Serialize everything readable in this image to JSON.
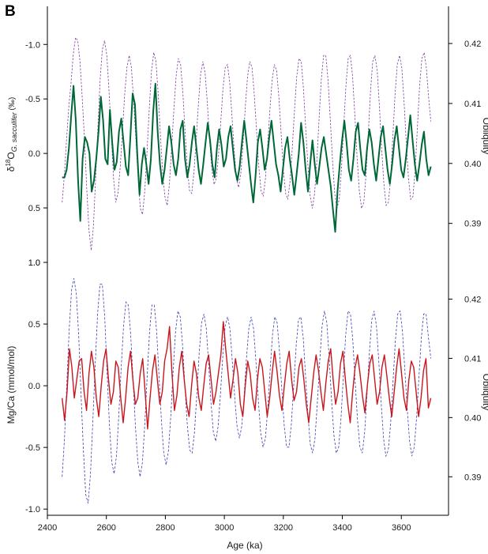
{
  "panel_label": "B",
  "chart_data": [
    {
      "type": "line",
      "name": "d18O panel",
      "ylabel_parts": {
        "prefix": "δ",
        "sup": "18",
        "mid": "O",
        "sub": "G. sacculifer",
        "unit": " (‰)"
      },
      "y2label": "Obliquity",
      "x_range": [
        2400,
        3760
      ],
      "ylim": [
        1.0,
        -1.35
      ],
      "y_inverted": true,
      "yticks": [
        -1.0,
        -0.5,
        0.0,
        0.5,
        1.0
      ],
      "ytick_labels": [
        "-1.0",
        "-0.5",
        "0.0",
        "0.5",
        "1.0"
      ],
      "y2lim": [
        0.3835,
        0.4262
      ],
      "y2ticks": [
        0.39,
        0.4,
        0.41,
        0.42
      ],
      "y2tick_labels": [
        "0.39",
        "0.40",
        "0.41",
        "0.42"
      ],
      "series": [
        {
          "role": "proxy",
          "color": "#006837",
          "x_start": 2450,
          "x_end": 3700,
          "values": [
            0.22,
            0.22,
            0.15,
            -0.05,
            -0.35,
            -0.62,
            -0.3,
            0.25,
            0.62,
            0.05,
            -0.15,
            -0.1,
            0.0,
            0.35,
            0.25,
            0.05,
            -0.2,
            -0.52,
            -0.3,
            0.05,
            0.1,
            -0.4,
            -0.1,
            0.15,
            0.08,
            -0.2,
            -0.32,
            -0.1,
            0.12,
            0.2,
            -0.15,
            -0.55,
            -0.45,
            0.0,
            0.38,
            0.1,
            -0.05,
            0.1,
            0.28,
            0.05,
            -0.38,
            -0.64,
            -0.2,
            0.1,
            0.28,
            0.15,
            -0.05,
            -0.25,
            -0.1,
            0.1,
            0.2,
            0.05,
            -0.22,
            -0.3,
            0.05,
            0.22,
            0.1,
            -0.1,
            -0.25,
            -0.05,
            0.15,
            0.28,
            0.1,
            -0.1,
            -0.28,
            -0.12,
            0.1,
            0.22,
            -0.05,
            -0.22,
            -0.08,
            0.12,
            0.05,
            -0.15,
            -0.25,
            -0.05,
            0.15,
            0.25,
            0.12,
            -0.1,
            -0.3,
            -0.12,
            0.08,
            0.28,
            0.45,
            0.2,
            -0.1,
            -0.22,
            -0.05,
            0.15,
            0.05,
            -0.15,
            -0.3,
            -0.1,
            0.1,
            0.2,
            0.35,
            0.15,
            -0.05,
            -0.15,
            0.05,
            0.2,
            0.38,
            0.2,
            0.0,
            -0.28,
            -0.1,
            0.15,
            0.35,
            0.1,
            -0.12,
            0.1,
            0.28,
            0.12,
            -0.05,
            -0.15,
            0.0,
            0.15,
            0.3,
            0.52,
            0.72,
            0.35,
            0.1,
            -0.12,
            -0.3,
            -0.1,
            0.15,
            0.25,
            0.05,
            -0.2,
            -0.28,
            -0.05,
            0.15,
            0.2,
            -0.05,
            -0.22,
            -0.1,
            0.1,
            0.25,
            0.05,
            -0.15,
            -0.25,
            -0.05,
            0.15,
            0.28,
            0.1,
            -0.12,
            -0.25,
            -0.05,
            0.15,
            0.22,
            0.05,
            -0.15,
            -0.35,
            -0.12,
            0.1,
            0.25,
            0.1,
            -0.08,
            -0.2,
            0.05,
            0.2,
            0.12
          ]
        },
        {
          "role": "obliquity",
          "color": "#7b3fa0",
          "x_start": 2450,
          "x_end": 3700,
          "values": [
            0.3935,
            0.398,
            0.404,
            0.4095,
            0.4135,
            0.4182,
            0.421,
            0.4205,
            0.417,
            0.411,
            0.404,
            0.396,
            0.389,
            0.3855,
            0.3895,
            0.3975,
            0.406,
            0.414,
            0.419,
            0.4205,
            0.418,
            0.412,
            0.405,
            0.3975,
            0.3935,
            0.395,
            0.3995,
            0.4055,
            0.4115,
            0.416,
            0.418,
            0.416,
            0.4105,
            0.404,
            0.3975,
            0.3925,
            0.3915,
            0.3955,
            0.402,
            0.409,
            0.4155,
            0.4185,
            0.417,
            0.4115,
            0.4045,
            0.3985,
            0.3945,
            0.393,
            0.3965,
            0.4025,
            0.409,
            0.4145,
            0.4175,
            0.4165,
            0.412,
            0.4055,
            0.3995,
            0.3955,
            0.395,
            0.3985,
            0.404,
            0.41,
            0.415,
            0.417,
            0.415,
            0.41,
            0.404,
            0.399,
            0.3965,
            0.3975,
            0.4015,
            0.407,
            0.4125,
            0.416,
            0.4165,
            0.4135,
            0.408,
            0.402,
            0.3975,
            0.396,
            0.3985,
            0.4035,
            0.4095,
            0.4145,
            0.417,
            0.416,
            0.4115,
            0.4055,
            0.3995,
            0.3955,
            0.3945,
            0.3975,
            0.403,
            0.409,
            0.414,
            0.4165,
            0.4155,
            0.411,
            0.405,
            0.399,
            0.395,
            0.394,
            0.397,
            0.4025,
            0.409,
            0.4145,
            0.4175,
            0.417,
            0.4125,
            0.406,
            0.3995,
            0.3945,
            0.3925,
            0.395,
            0.4005,
            0.4075,
            0.414,
            0.418,
            0.418,
            0.414,
            0.4075,
            0.4005,
            0.395,
            0.3925,
            0.394,
            0.399,
            0.406,
            0.413,
            0.4175,
            0.418,
            0.4145,
            0.408,
            0.401,
            0.3955,
            0.3925,
            0.3935,
            0.398,
            0.405,
            0.412,
            0.417,
            0.418,
            0.4155,
            0.4095,
            0.4025,
            0.3965,
            0.393,
            0.3935,
            0.3975,
            0.4045,
            0.4115,
            0.4165,
            0.418,
            0.416,
            0.4105,
            0.4035,
            0.3975,
            0.394,
            0.3945,
            0.399,
            0.406,
            0.413,
            0.4175,
            0.4185,
            0.416,
            0.411,
            0.407
          ]
        }
      ]
    },
    {
      "type": "line",
      "name": "Mg/Ca panel",
      "ylabel": "Mg/Ca (mmol/mol)",
      "y2label": "Obliquity",
      "x_range": [
        2400,
        3760
      ],
      "ylim": [
        -1.05,
        1.0
      ],
      "yticks": [
        -1.0,
        -0.5,
        0.0,
        0.5,
        1.0
      ],
      "ytick_labels": [
        "-1.0",
        "-0.5",
        "0.0",
        "0.5",
        "1.0"
      ],
      "y2lim": [
        0.3835,
        0.4262
      ],
      "y2ticks": [
        0.39,
        0.4,
        0.41,
        0.42
      ],
      "y2tick_labels": [
        "0.39",
        "0.40",
        "0.41",
        "0.42"
      ],
      "series": [
        {
          "role": "proxy",
          "color": "#c8161d",
          "x_start": 2450,
          "x_end": 3700,
          "values": [
            -0.1,
            -0.28,
            -0.05,
            0.3,
            0.15,
            -0.1,
            0.05,
            0.2,
            0.22,
            -0.05,
            -0.2,
            0.1,
            0.28,
            0.15,
            -0.1,
            -0.25,
            0.0,
            0.2,
            0.3,
            0.05,
            -0.15,
            -0.05,
            0.2,
            0.15,
            -0.1,
            -0.3,
            -0.1,
            0.15,
            0.28,
            0.05,
            -0.15,
            -0.1,
            0.1,
            0.22,
            -0.05,
            -0.35,
            -0.1,
            0.12,
            0.25,
            0.05,
            -0.15,
            -0.05,
            0.2,
            0.3,
            0.48,
            0.1,
            -0.2,
            -0.08,
            0.15,
            0.28,
            0.05,
            -0.15,
            -0.25,
            0.0,
            0.2,
            0.1,
            -0.1,
            -0.2,
            0.0,
            0.18,
            0.25,
            0.05,
            -0.15,
            -0.05,
            0.1,
            0.25,
            0.52,
            0.3,
            0.1,
            -0.1,
            0.05,
            0.22,
            0.1,
            -0.15,
            -0.25,
            0.0,
            0.2,
            0.1,
            -0.1,
            -0.2,
            0.05,
            0.22,
            0.15,
            -0.05,
            -0.25,
            -0.1,
            0.1,
            0.28,
            0.12,
            -0.08,
            -0.2,
            0.0,
            0.18,
            0.28,
            0.05,
            -0.12,
            -0.05,
            0.15,
            0.22,
            0.05,
            -0.15,
            -0.3,
            -0.1,
            0.1,
            0.25,
            0.12,
            -0.05,
            -0.2,
            0.02,
            0.2,
            0.3,
            0.05,
            -0.15,
            -0.05,
            0.18,
            0.28,
            0.05,
            -0.15,
            -0.3,
            -0.05,
            0.15,
            0.25,
            0.1,
            -0.08,
            -0.22,
            0.0,
            0.18,
            0.25,
            0.05,
            -0.15,
            -0.05,
            0.15,
            0.25,
            0.08,
            -0.1,
            -0.25,
            -0.05,
            0.15,
            0.3,
            0.1,
            -0.1,
            -0.2,
            0.05,
            0.2,
            0.15,
            -0.05,
            -0.25,
            -0.1,
            0.12,
            0.22,
            -0.18,
            -0.1
          ]
        },
        {
          "role": "obliquity",
          "color": "#3b3fb0",
          "x_start": 2450,
          "x_end": 3700,
          "values": [
            0.39,
            0.3965,
            0.406,
            0.415,
            0.4215,
            0.4235,
            0.421,
            0.414,
            0.404,
            0.3945,
            0.387,
            0.3855,
            0.3905,
            0.3995,
            0.409,
            0.4175,
            0.4225,
            0.4225,
            0.417,
            0.408,
            0.399,
            0.3925,
            0.3905,
            0.3935,
            0.4005,
            0.4085,
            0.4155,
            0.4195,
            0.419,
            0.414,
            0.4065,
            0.3985,
            0.3925,
            0.39,
            0.3925,
            0.399,
            0.407,
            0.4145,
            0.419,
            0.419,
            0.4145,
            0.407,
            0.3995,
            0.394,
            0.392,
            0.3945,
            0.4005,
            0.408,
            0.4145,
            0.418,
            0.417,
            0.412,
            0.405,
            0.3985,
            0.3945,
            0.394,
            0.3975,
            0.404,
            0.411,
            0.416,
            0.4175,
            0.415,
            0.409,
            0.4025,
            0.3975,
            0.396,
            0.3985,
            0.404,
            0.4105,
            0.4155,
            0.417,
            0.415,
            0.4095,
            0.4035,
            0.3985,
            0.3965,
            0.3985,
            0.4035,
            0.41,
            0.415,
            0.417,
            0.415,
            0.4095,
            0.403,
            0.3975,
            0.395,
            0.3965,
            0.4015,
            0.408,
            0.414,
            0.417,
            0.416,
            0.411,
            0.4045,
            0.3985,
            0.395,
            0.395,
            0.399,
            0.4055,
            0.412,
            0.4165,
            0.417,
            0.4135,
            0.407,
            0.4005,
            0.3955,
            0.394,
            0.3965,
            0.4025,
            0.4095,
            0.4155,
            0.418,
            0.416,
            0.41,
            0.403,
            0.397,
            0.394,
            0.395,
            0.4,
            0.407,
            0.414,
            0.418,
            0.4175,
            0.413,
            0.406,
            0.3995,
            0.395,
            0.394,
            0.3975,
            0.404,
            0.411,
            0.4165,
            0.418,
            0.4155,
            0.4095,
            0.4025,
            0.3965,
            0.3935,
            0.3945,
            0.399,
            0.406,
            0.413,
            0.4175,
            0.418,
            0.4145,
            0.408,
            0.4015,
            0.396,
            0.3935,
            0.395,
            0.4,
            0.407,
            0.4135,
            0.4175,
            0.4175,
            0.4135,
            0.41
          ]
        }
      ]
    }
  ],
  "x_axis": {
    "label": "Age (ka)",
    "range": [
      2400,
      3760
    ],
    "ticks": [
      2400,
      2600,
      2800,
      3000,
      3200,
      3400,
      3600
    ],
    "tick_labels": [
      "2400",
      "2600",
      "2800",
      "3000",
      "3200",
      "3400",
      "3600"
    ]
  }
}
